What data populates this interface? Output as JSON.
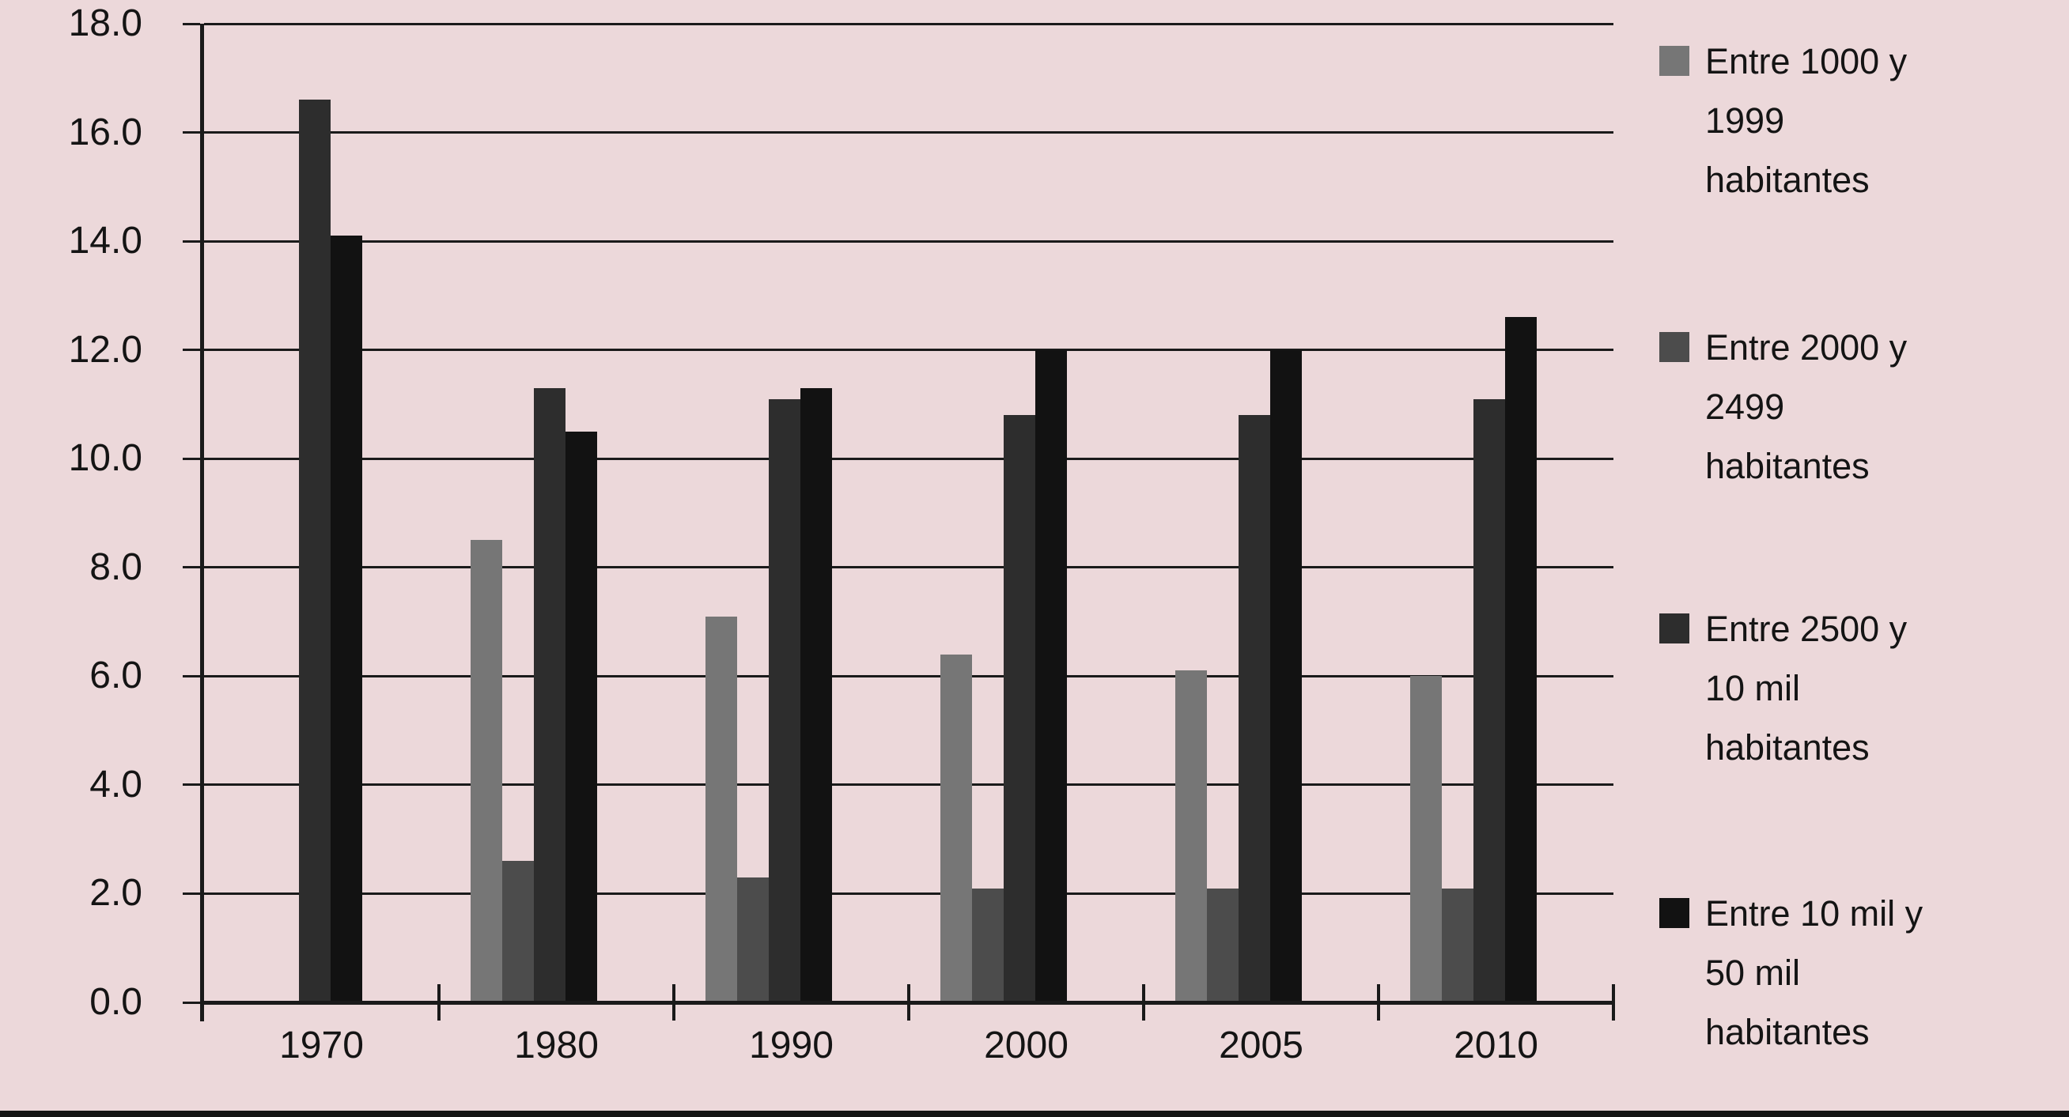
{
  "page": {
    "background_color": "#ecd8da",
    "line_color": "#1a1a1a"
  },
  "chart_data": {
    "type": "bar",
    "title": "",
    "xlabel": "",
    "ylabel": "",
    "categories": [
      "1970",
      "1980",
      "1990",
      "2000",
      "2005",
      "2010"
    ],
    "series": [
      {
        "name": "Entre 1000 y 1999 habitantes",
        "color": "#767676",
        "values": [
          0,
          8.5,
          7.1,
          6.4,
          6.1,
          6.0
        ]
      },
      {
        "name": "Entre 2000 y 2499 habitantes",
        "color": "#4c4c4c",
        "values": [
          0,
          2.6,
          2.3,
          2.1,
          2.1,
          2.1
        ]
      },
      {
        "name": "Entre 2500 y 10 mil habitantes",
        "color": "#2d2d2d",
        "values": [
          16.6,
          11.3,
          11.1,
          10.8,
          10.8,
          11.1
        ]
      },
      {
        "name": "Entre 10 mil y 50 mil habitantes",
        "color": "#121212",
        "values": [
          14.1,
          10.5,
          11.3,
          12.0,
          12.0,
          12.6
        ]
      }
    ],
    "ylim": [
      0,
      18
    ],
    "ytick_step": 2,
    "ytick_labels": [
      "0.0",
      "2.0",
      "4.0",
      "6.0",
      "8.0",
      "10.0",
      "12.0",
      "14.0",
      "16.0",
      "18.0"
    ],
    "grid": true,
    "legend_position": "right",
    "legend_items": [
      {
        "lines": [
          "Entre 1000 y",
          "1999",
          "habitantes"
        ],
        "color": "#767676"
      },
      {
        "lines": [
          "Entre 2000 y",
          "2499",
          "habitantes"
        ],
        "color": "#4c4c4c"
      },
      {
        "lines": [
          "Entre 2500 y",
          "10 mil",
          "habitantes"
        ],
        "color": "#2d2d2d"
      },
      {
        "lines": [
          "Entre 10 mil y",
          "50 mil",
          "habitantes"
        ],
        "color": "#121212"
      }
    ]
  }
}
